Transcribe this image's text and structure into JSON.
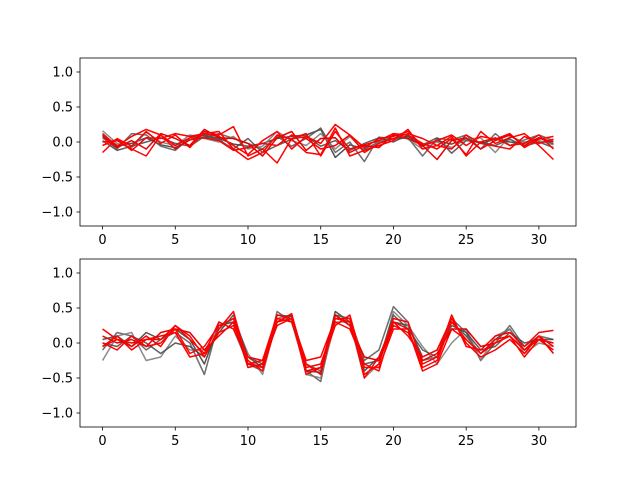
{
  "chart_data": [
    {
      "type": "line",
      "title": "",
      "xlabel": "",
      "ylabel": "",
      "xlim": [
        -1.55,
        32.55
      ],
      "ylim": [
        -1.2,
        1.2
      ],
      "xticks": [
        0,
        5,
        10,
        15,
        20,
        25,
        30
      ],
      "xtick_labels": [
        "0",
        "5",
        "10",
        "15",
        "20",
        "25",
        "30"
      ],
      "yticks": [
        1.0,
        0.5,
        0.0,
        -0.5,
        -1.0
      ],
      "ytick_labels": [
        "1.0",
        "0.5",
        "0.0",
        "−0.5",
        "−1.0"
      ],
      "grid": false,
      "legend": "none",
      "x": [
        0,
        1,
        2,
        3,
        4,
        5,
        6,
        7,
        8,
        9,
        10,
        11,
        12,
        13,
        14,
        15,
        16,
        17,
        18,
        19,
        20,
        21,
        22,
        23,
        24,
        25,
        26,
        27,
        28,
        29,
        30,
        31
      ],
      "series": [
        {
          "color": "#333333",
          "values": [
            0.1,
            -0.05,
            -0.02,
            0.06,
            -0.04,
            -0.08,
            0.03,
            0.1,
            0.05,
            -0.03,
            -0.06,
            -0.02,
            0.05,
            0.08,
            0.1,
            0.18,
            -0.22,
            -0.04,
            -0.1,
            0.0,
            0.05,
            0.08,
            -0.06,
            0.02,
            -0.03,
            0.05,
            -0.02,
            0.04,
            0.0,
            -0.02,
            0.06,
            -0.03
          ]
        },
        {
          "color": "#555555",
          "values": [
            0.06,
            -0.1,
            0.12,
            0.1,
            -0.06,
            -0.12,
            0.06,
            0.06,
            0.12,
            0.05,
            -0.02,
            -0.1,
            0.08,
            -0.06,
            0.05,
            0.2,
            -0.15,
            0.0,
            -0.28,
            0.07,
            0.04,
            0.06,
            -0.2,
            0.05,
            0.03,
            0.1,
            -0.1,
            0.12,
            -0.05,
            0.03,
            0.1,
            0.02
          ]
        },
        {
          "color": "#777777",
          "values": [
            0.16,
            -0.02,
            -0.08,
            0.14,
            0.0,
            -0.05,
            0.1,
            0.05,
            0.0,
            0.08,
            -0.1,
            -0.06,
            0.15,
            0.02,
            -0.05,
            0.12,
            -0.1,
            0.08,
            -0.12,
            0.0,
            0.1,
            0.04,
            -0.1,
            0.0,
            -0.08,
            0.04,
            0.06,
            -0.15,
            0.08,
            0.0,
            0.02,
            -0.04
          ]
        },
        {
          "color": "#444444",
          "values": [
            0.02,
            -0.12,
            -0.06,
            0.0,
            0.06,
            -0.02,
            -0.06,
            0.08,
            0.03,
            -0.1,
            0.05,
            -0.15,
            -0.05,
            0.04,
            0.08,
            -0.06,
            0.02,
            -0.12,
            -0.02,
            0.06,
            0.0,
            0.1,
            -0.04,
            0.06,
            -0.16,
            0.02,
            0.0,
            -0.05,
            0.04,
            -0.06,
            0.0,
            -0.08
          ]
        },
        {
          "color": "#ff0000",
          "values": [
            0.12,
            -0.06,
            0.08,
            0.18,
            0.1,
            -0.05,
            0.06,
            0.12,
            0.08,
            -0.05,
            -0.18,
            0.02,
            0.15,
            -0.1,
            0.08,
            -0.02,
            0.25,
            0.1,
            -0.08,
            0.05,
            0.08,
            0.15,
            -0.05,
            0.02,
            0.1,
            -0.05,
            0.08,
            0.04,
            0.12,
            -0.08,
            0.04,
            0.08
          ]
        },
        {
          "color": "#ff0000",
          "values": [
            -0.15,
            0.05,
            -0.06,
            0.15,
            -0.02,
            0.1,
            -0.08,
            0.15,
            0.1,
            0.22,
            -0.2,
            -0.1,
            -0.3,
            0.05,
            0.12,
            -0.2,
            0.15,
            -0.1,
            -0.04,
            0.02,
            0.12,
            0.1,
            -0.02,
            -0.1,
            0.05,
            -0.18,
            0.15,
            -0.02,
            0.06,
            0.12,
            -0.05,
            -0.25
          ]
        },
        {
          "color": "#e60000",
          "values": [
            0.08,
            -0.08,
            0.02,
            -0.1,
            0.12,
            0.05,
            -0.05,
            0.18,
            0.06,
            0.05,
            -0.02,
            -0.2,
            0.06,
            0.15,
            -0.12,
            0.05,
            0.06,
            -0.15,
            -0.05,
            -0.08,
            0.1,
            0.05,
            -0.05,
            -0.25,
            0.02,
            0.06,
            -0.1,
            0.02,
            0.1,
            -0.05,
            0.06,
            0.0
          ]
        },
        {
          "color": "#ff0000",
          "values": [
            -0.05,
            0.04,
            -0.12,
            0.06,
            0.05,
            0.12,
            0.08,
            0.12,
            0.15,
            -0.1,
            -0.25,
            -0.15,
            0.1,
            0.04,
            -0.15,
            -0.18,
            0.2,
            -0.2,
            -0.12,
            -0.05,
            0.02,
            0.18,
            -0.1,
            -0.05,
            -0.1,
            0.1,
            -0.02,
            -0.06,
            -0.1,
            0.08,
            -0.02,
            0.04
          ]
        },
        {
          "color": "#ff0000",
          "values": [
            0.0,
            0.02,
            -0.1,
            -0.2,
            0.1,
            -0.1,
            0.03,
            0.06,
            0.02,
            -0.12,
            -0.08,
            -0.02,
            -0.05,
            0.1,
            0.05,
            -0.1,
            -0.05,
            0.1,
            -0.15,
            -0.02,
            0.05,
            0.12,
            0.05,
            -0.05,
            0.08,
            -0.2,
            0.0,
            0.06,
            -0.05,
            -0.02,
            0.1,
            -0.1
          ]
        }
      ]
    },
    {
      "type": "line",
      "title": "",
      "xlabel": "",
      "ylabel": "",
      "xlim": [
        -1.55,
        32.55
      ],
      "ylim": [
        -1.2,
        1.2
      ],
      "xticks": [
        0,
        5,
        10,
        15,
        20,
        25,
        30
      ],
      "xtick_labels": [
        "0",
        "5",
        "10",
        "15",
        "20",
        "25",
        "30"
      ],
      "yticks": [
        1.0,
        0.5,
        0.0,
        -0.5,
        -1.0
      ],
      "ytick_labels": [
        "1.0",
        "0.5",
        "0.0",
        "−0.5",
        "−1.0"
      ],
      "grid": false,
      "legend": "none",
      "x": [
        0,
        1,
        2,
        3,
        4,
        5,
        6,
        7,
        8,
        9,
        10,
        11,
        12,
        13,
        14,
        15,
        16,
        17,
        18,
        19,
        20,
        21,
        22,
        23,
        24,
        25,
        26,
        27,
        28,
        29,
        30,
        31
      ],
      "series": [
        {
          "color": "#333333",
          "values": [
            0.05,
            0.1,
            -0.05,
            0.15,
            0.05,
            0.2,
            0.05,
            -0.3,
            0.25,
            0.3,
            -0.2,
            -0.35,
            0.4,
            0.38,
            -0.4,
            -0.42,
            0.45,
            0.3,
            -0.4,
            -0.2,
            0.3,
            0.25,
            -0.2,
            -0.1,
            0.3,
            0.1,
            -0.15,
            0.05,
            0.2,
            -0.1,
            0.05,
            0.0
          ]
        },
        {
          "color": "#555555",
          "values": [
            -0.1,
            0.15,
            0.1,
            -0.1,
            0.05,
            0.15,
            0.0,
            -0.45,
            0.3,
            0.2,
            -0.3,
            -0.4,
            0.45,
            0.3,
            -0.4,
            -0.55,
            0.4,
            0.35,
            -0.25,
            -0.1,
            0.52,
            0.3,
            -0.25,
            -0.2,
            0.35,
            0.15,
            -0.25,
            0.0,
            0.25,
            -0.05,
            0.1,
            0.05
          ]
        },
        {
          "color": "#777777",
          "values": [
            -0.25,
            0.1,
            0.15,
            -0.25,
            -0.2,
            0.1,
            -0.1,
            -0.1,
            0.2,
            0.35,
            -0.15,
            -0.45,
            0.35,
            0.4,
            -0.45,
            -0.5,
            0.3,
            0.3,
            -0.5,
            -0.3,
            0.45,
            0.25,
            -0.05,
            -0.3,
            0.0,
            0.2,
            -0.25,
            0.1,
            0.2,
            -0.15,
            0.0,
            -0.05
          ]
        },
        {
          "color": "#444444",
          "values": [
            0.0,
            -0.05,
            0.1,
            0.0,
            -0.15,
            0.0,
            -0.05,
            -0.2,
            0.15,
            0.4,
            -0.2,
            -0.3,
            0.3,
            0.4,
            -0.3,
            -0.4,
            0.4,
            0.25,
            -0.3,
            -0.25,
            0.4,
            0.2,
            -0.1,
            -0.2,
            0.25,
            0.15,
            -0.1,
            -0.05,
            0.15,
            0.0,
            0.05,
            0.05
          ]
        },
        {
          "color": "#ff0000",
          "values": [
            0.2,
            0.05,
            -0.05,
            0.1,
            -0.05,
            0.25,
            0.1,
            -0.2,
            0.2,
            0.45,
            -0.3,
            -0.25,
            0.4,
            0.35,
            -0.25,
            -0.2,
            0.35,
            0.3,
            -0.45,
            -0.3,
            0.35,
            0.3,
            -0.3,
            -0.2,
            0.4,
            -0.05,
            -0.1,
            0.1,
            0.15,
            -0.05,
            0.15,
            0.18
          ]
        },
        {
          "color": "#ff0000",
          "values": [
            -0.05,
            0.1,
            -0.1,
            0.05,
            0.1,
            0.15,
            -0.2,
            -0.15,
            0.3,
            0.2,
            -0.25,
            -0.4,
            0.3,
            0.42,
            -0.35,
            -0.3,
            0.3,
            0.2,
            -0.3,
            -0.4,
            0.3,
            0.2,
            -0.4,
            -0.3,
            0.2,
            0.05,
            -0.15,
            0.05,
            0.1,
            -0.2,
            0.05,
            -0.1
          ]
        },
        {
          "color": "#e60000",
          "values": [
            0.1,
            0.0,
            0.05,
            -0.05,
            0.15,
            0.2,
            0.15,
            -0.1,
            0.1,
            0.3,
            -0.35,
            -0.3,
            0.25,
            0.35,
            -0.4,
            -0.35,
            0.4,
            0.25,
            -0.2,
            -0.25,
            0.25,
            0.15,
            -0.25,
            -0.15,
            0.2,
            0.2,
            -0.05,
            0.0,
            0.1,
            -0.1,
            0.1,
            -0.15
          ]
        },
        {
          "color": "#ff0000",
          "values": [
            0.0,
            -0.1,
            0.1,
            -0.05,
            0.0,
            0.2,
            -0.15,
            -0.05,
            0.25,
            0.35,
            -0.3,
            -0.35,
            0.35,
            0.3,
            -0.3,
            -0.45,
            0.35,
            0.35,
            -0.5,
            -0.2,
            0.3,
            0.1,
            -0.2,
            -0.1,
            0.35,
            0.0,
            -0.2,
            -0.1,
            0.05,
            -0.15,
            0.1,
            -0.05
          ]
        },
        {
          "color": "#ff0000",
          "values": [
            -0.05,
            0.05,
            0.0,
            0.05,
            0.05,
            0.25,
            0.05,
            -0.15,
            0.15,
            0.25,
            -0.2,
            -0.25,
            0.3,
            0.35,
            -0.45,
            -0.35,
            0.25,
            0.4,
            -0.35,
            -0.35,
            0.2,
            0.2,
            -0.35,
            -0.25,
            0.3,
            0.05,
            -0.15,
            0.0,
            0.1,
            -0.1,
            0.05,
            0.0
          ]
        }
      ]
    }
  ]
}
